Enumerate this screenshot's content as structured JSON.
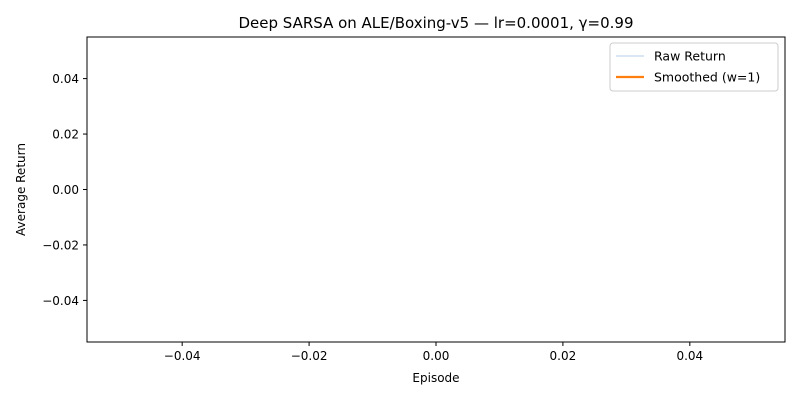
{
  "chart_data": {
    "type": "line",
    "title": "Deep SARSA on ALE/Boxing-v5 — lr=0.0001, γ=0.99",
    "xlabel": "Episode",
    "ylabel": "Average Return",
    "xlim": [
      -0.055,
      0.055
    ],
    "ylim": [
      -0.055,
      0.055
    ],
    "x_ticks": [
      -0.04,
      -0.02,
      0.0,
      0.02,
      0.04
    ],
    "x_tick_labels": [
      "−0.04",
      "−0.02",
      "0.00",
      "0.02",
      "0.04"
    ],
    "y_ticks": [
      0.04,
      0.02,
      0.0,
      -0.02,
      -0.04
    ],
    "y_tick_labels": [
      "0.04",
      "0.02",
      "0.00",
      "−0.02",
      "−0.04"
    ],
    "grid": false,
    "legend_position": "top-right",
    "series": [
      {
        "name": "Raw Return",
        "color": "#aec7e8",
        "x": [],
        "y": []
      },
      {
        "name": "Smoothed (w=1)",
        "color": "#ff7f0e",
        "x": [],
        "y": []
      }
    ]
  }
}
